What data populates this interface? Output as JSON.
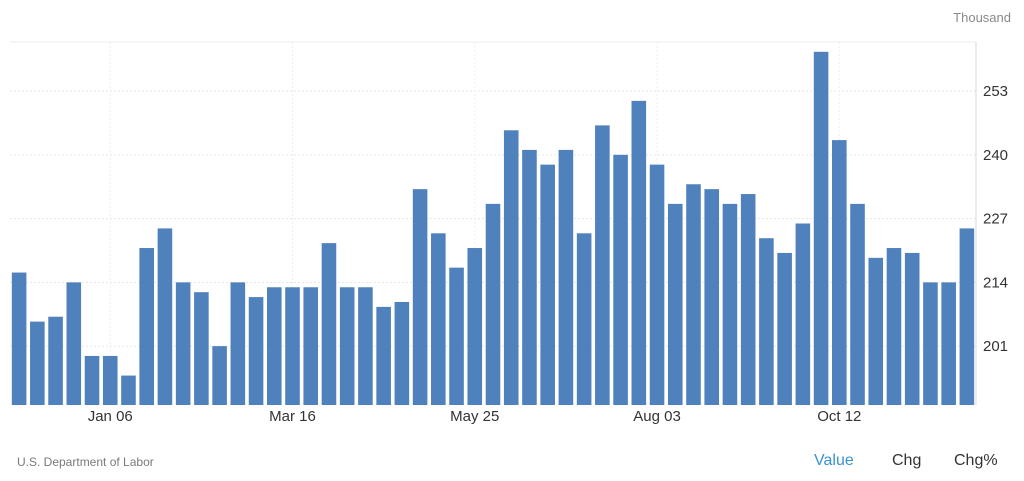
{
  "unit_label": "Thousand",
  "source": "U.S. Department of Labor",
  "tabs": [
    {
      "label": "Value",
      "active": true
    },
    {
      "label": "Chg",
      "active": false
    },
    {
      "label": "Chg%",
      "active": false
    }
  ],
  "colors": {
    "bar": "#4f81bd",
    "active_tab": "#3a93d6",
    "grid": "#e6e6e6"
  },
  "chart_data": {
    "type": "bar",
    "ylabel": "Thousand",
    "ylim": [
      189,
      263
    ],
    "y_ticks": [
      201,
      214,
      227,
      240,
      253
    ],
    "x_tick_labels": [
      {
        "label": "Jan 06",
        "index": 5
      },
      {
        "label": "Mar 16",
        "index": 15
      },
      {
        "label": "May 25",
        "index": 25
      },
      {
        "label": "Aug 03",
        "index": 35
      },
      {
        "label": "Oct 12",
        "index": 45
      }
    ],
    "values": [
      216,
      206,
      207,
      214,
      199,
      199,
      195,
      221,
      225,
      214,
      212,
      201,
      214,
      211,
      213,
      213,
      213,
      222,
      213,
      213,
      209,
      210,
      233,
      224,
      217,
      221,
      230,
      245,
      241,
      238,
      241,
      224,
      246,
      240,
      251,
      238,
      230,
      234,
      233,
      230,
      232,
      223,
      220,
      226,
      261,
      243,
      230,
      219,
      221,
      220,
      214,
      214,
      225
    ]
  }
}
